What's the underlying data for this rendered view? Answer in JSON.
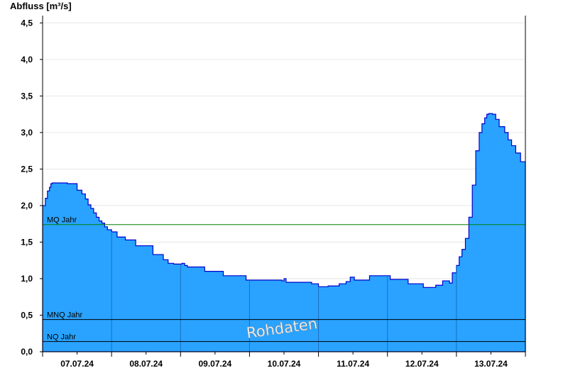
{
  "chart_data": {
    "type": "area",
    "ylabel": "Abfluss [m³/s]",
    "ylim": [
      0,
      4.6
    ],
    "yticks": [
      0,
      0.5,
      1,
      1.5,
      2,
      2.5,
      3,
      3.5,
      4,
      4.5
    ],
    "ytick_labels": [
      "0,0",
      "0,5",
      "1,0",
      "1,5",
      "2,0",
      "2,5",
      "3,0",
      "3,5",
      "4,0",
      "4,5"
    ],
    "xlim": [
      0,
      7
    ],
    "xtick_labels": [
      "07.07.24",
      "08.07.24",
      "09.07.24",
      "10.07.24",
      "11.07.24",
      "12.07.24",
      "13.07.24"
    ],
    "grid": "horizontal",
    "watermark": "Rohdaten",
    "colors": {
      "fill": "#29a3ff",
      "outline": "#0000cc",
      "mq_line": "#008000",
      "ref_line": "#000000"
    },
    "reference_lines": [
      {
        "label": "MQ Jahr",
        "value": 1.74,
        "color": "#008000"
      },
      {
        "label": "MNQ Jahr",
        "value": 0.44,
        "color": "#000000"
      },
      {
        "label": "NQ Jahr",
        "value": 0.14,
        "color": "#000000"
      }
    ],
    "series": [
      {
        "x": [
          0.0,
          0.04,
          0.07,
          0.1,
          0.12,
          0.14,
          0.36,
          0.5,
          0.57,
          0.62,
          0.66,
          0.7,
          0.74,
          0.78,
          0.82,
          0.86,
          0.9,
          0.94,
          1.0,
          1.08,
          1.2,
          1.35,
          1.6,
          1.75,
          1.82,
          1.9,
          2.02,
          2.06,
          2.1,
          2.35,
          2.62,
          2.95,
          3.47,
          3.5,
          3.53,
          3.9,
          4.0,
          4.14,
          4.3,
          4.4,
          4.46,
          4.52,
          4.74,
          5.04,
          5.3,
          5.52,
          5.7,
          5.8,
          5.9,
          5.94,
          6.0,
          6.04,
          6.08,
          6.13,
          6.18,
          6.23,
          6.28,
          6.33,
          6.37,
          6.41,
          6.44,
          6.47,
          6.52,
          6.57,
          6.62,
          6.7,
          6.75,
          6.8,
          6.86,
          6.93,
          7.0
        ],
        "values": [
          2.0,
          2.1,
          2.2,
          2.25,
          2.3,
          2.31,
          2.3,
          2.21,
          2.16,
          2.09,
          2.01,
          1.96,
          1.9,
          1.84,
          1.79,
          1.76,
          1.71,
          1.67,
          1.64,
          1.57,
          1.53,
          1.45,
          1.33,
          1.26,
          1.21,
          1.2,
          1.21,
          1.18,
          1.16,
          1.1,
          1.04,
          0.98,
          0.97,
          1.0,
          0.95,
          0.93,
          0.89,
          0.9,
          0.93,
          0.96,
          1.02,
          0.98,
          1.04,
          0.99,
          0.93,
          0.88,
          0.91,
          0.97,
          0.94,
          1.08,
          1.18,
          1.3,
          1.4,
          1.55,
          1.84,
          2.28,
          2.75,
          3.0,
          3.12,
          3.2,
          3.25,
          3.26,
          3.25,
          3.18,
          3.08,
          3.0,
          2.9,
          2.82,
          2.72,
          2.6,
          2.45
        ]
      }
    ]
  }
}
